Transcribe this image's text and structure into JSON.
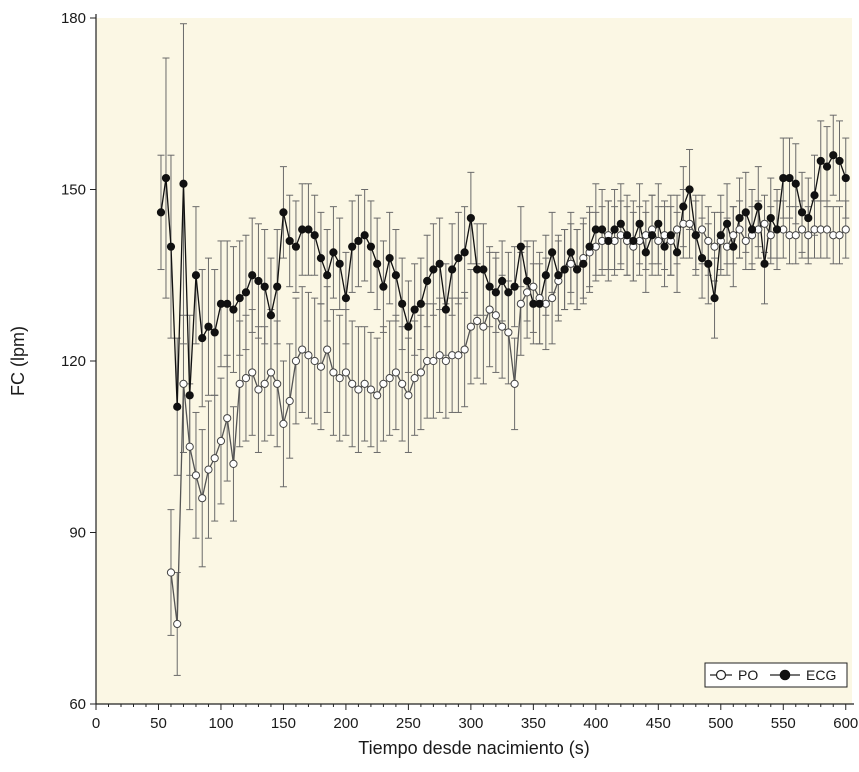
{
  "chart_data": {
    "type": "line",
    "title": "",
    "xlabel": "Tiempo desde nacimiento (s)",
    "ylabel": "FC (lpm)",
    "xlim": [
      0,
      605
    ],
    "ylim": [
      60,
      180
    ],
    "xticks": [
      0,
      50,
      100,
      150,
      200,
      250,
      300,
      350,
      400,
      450,
      500,
      550,
      600
    ],
    "yticks": [
      60,
      90,
      120,
      150,
      180
    ],
    "grid": false,
    "error_bars": true,
    "background": "#fbf7e4",
    "legend": {
      "position": "bottom-right",
      "entries": [
        "PO",
        "ECG"
      ]
    },
    "series": [
      {
        "name": "PO",
        "marker": "open-circle",
        "color": "#555555",
        "x": [
          60,
          65,
          70,
          75,
          80,
          85,
          90,
          95,
          100,
          105,
          110,
          115,
          120,
          125,
          130,
          135,
          140,
          145,
          150,
          155,
          160,
          165,
          170,
          175,
          180,
          185,
          190,
          195,
          200,
          205,
          210,
          215,
          220,
          225,
          230,
          235,
          240,
          245,
          250,
          255,
          260,
          265,
          270,
          275,
          280,
          285,
          290,
          295,
          300,
          305,
          310,
          315,
          320,
          325,
          330,
          335,
          340,
          345,
          350,
          355,
          360,
          365,
          370,
          375,
          380,
          385,
          390,
          395,
          400,
          405,
          410,
          415,
          420,
          425,
          430,
          435,
          440,
          445,
          450,
          455,
          460,
          465,
          470,
          475,
          480,
          485,
          490,
          495,
          500,
          505,
          510,
          515,
          520,
          525,
          530,
          535,
          540,
          545,
          550,
          555,
          560,
          565,
          570,
          575,
          580,
          585,
          590,
          595,
          600
        ],
        "y": [
          83,
          74,
          116,
          105,
          100,
          96,
          101,
          103,
          106,
          110,
          102,
          116,
          117,
          118,
          115,
          116,
          118,
          116,
          109,
          113,
          120,
          122,
          121,
          120,
          119,
          122,
          118,
          117,
          118,
          116,
          115,
          116,
          115,
          114,
          116,
          117,
          118,
          116,
          114,
          117,
          118,
          120,
          120,
          121,
          120,
          121,
          121,
          122,
          126,
          127,
          126,
          129,
          128,
          126,
          125,
          116,
          130,
          132,
          133,
          131,
          130,
          131,
          134,
          136,
          137,
          136,
          138,
          139,
          140,
          141,
          142,
          141,
          142,
          141,
          140,
          141,
          142,
          143,
          141,
          142,
          141,
          143,
          144,
          144,
          142,
          143,
          141,
          140,
          141,
          140,
          142,
          143,
          141,
          142,
          143,
          144,
          142,
          143,
          143,
          142,
          142,
          143,
          142,
          143,
          143,
          143,
          142,
          142,
          143
        ],
        "err": [
          11,
          9,
          12,
          11,
          11,
          12,
          12,
          11,
          11,
          11,
          10,
          11,
          11,
          11,
          11,
          10,
          11,
          11,
          11,
          10,
          11,
          11,
          11,
          11,
          11,
          11,
          11,
          11,
          11,
          11,
          11,
          10,
          10,
          10,
          10,
          10,
          10,
          10,
          10,
          10,
          10,
          10,
          10,
          10,
          10,
          10,
          10,
          10,
          10,
          10,
          10,
          10,
          10,
          9,
          9,
          8,
          9,
          8,
          8,
          8,
          8,
          8,
          7,
          7,
          7,
          7,
          7,
          7,
          6,
          6,
          6,
          6,
          6,
          6,
          6,
          6,
          6,
          6,
          6,
          6,
          6,
          6,
          6,
          6,
          6,
          6,
          6,
          6,
          5,
          5,
          5,
          5,
          5,
          5,
          5,
          5,
          5,
          5,
          5,
          5,
          5,
          5,
          5,
          5,
          5,
          5,
          5,
          5,
          5
        ]
      },
      {
        "name": "ECG",
        "marker": "filled-circle",
        "color": "#111111",
        "x": [
          52,
          56,
          60,
          65,
          70,
          75,
          80,
          85,
          90,
          95,
          100,
          105,
          110,
          115,
          120,
          125,
          130,
          135,
          140,
          145,
          150,
          155,
          160,
          165,
          170,
          175,
          180,
          185,
          190,
          195,
          200,
          205,
          210,
          215,
          220,
          225,
          230,
          235,
          240,
          245,
          250,
          255,
          260,
          265,
          270,
          275,
          280,
          285,
          290,
          295,
          300,
          305,
          310,
          315,
          320,
          325,
          330,
          335,
          340,
          345,
          350,
          355,
          360,
          365,
          370,
          375,
          380,
          385,
          390,
          395,
          400,
          405,
          410,
          415,
          420,
          425,
          430,
          435,
          440,
          445,
          450,
          455,
          460,
          465,
          470,
          475,
          480,
          485,
          490,
          495,
          500,
          505,
          510,
          515,
          520,
          525,
          530,
          535,
          540,
          545,
          550,
          555,
          560,
          565,
          570,
          575,
          580,
          585,
          590,
          595,
          600
        ],
        "y": [
          146,
          152,
          140,
          112,
          151,
          114,
          135,
          124,
          126,
          125,
          130,
          130,
          129,
          131,
          132,
          135,
          134,
          133,
          128,
          133,
          146,
          141,
          140,
          143,
          143,
          142,
          138,
          135,
          139,
          137,
          131,
          140,
          141,
          142,
          140,
          137,
          133,
          138,
          135,
          130,
          126,
          129,
          130,
          134,
          136,
          137,
          129,
          136,
          138,
          139,
          145,
          136,
          136,
          133,
          132,
          134,
          132,
          133,
          140,
          134,
          130,
          130,
          135,
          139,
          135,
          136,
          139,
          136,
          137,
          140,
          143,
          143,
          141,
          143,
          144,
          142,
          141,
          144,
          139,
          142,
          144,
          140,
          142,
          139,
          147,
          150,
          142,
          138,
          137,
          131,
          142,
          144,
          140,
          145,
          146,
          143,
          147,
          137,
          145,
          143,
          152,
          152,
          151,
          146,
          145,
          149,
          155,
          154,
          156,
          155,
          152
        ],
        "err": [
          10,
          21,
          16,
          12,
          28,
          14,
          12,
          12,
          12,
          11,
          11,
          11,
          11,
          10,
          10,
          10,
          10,
          10,
          10,
          10,
          8,
          8,
          8,
          8,
          8,
          7,
          8,
          8,
          8,
          8,
          8,
          8,
          8,
          8,
          8,
          8,
          8,
          8,
          8,
          8,
          8,
          8,
          8,
          8,
          8,
          8,
          8,
          8,
          8,
          8,
          8,
          8,
          8,
          7,
          7,
          7,
          7,
          7,
          7,
          7,
          7,
          7,
          7,
          7,
          7,
          7,
          7,
          7,
          7,
          7,
          8,
          7,
          7,
          7,
          7,
          7,
          7,
          7,
          7,
          7,
          7,
          7,
          7,
          7,
          7,
          7,
          7,
          7,
          7,
          7,
          7,
          7,
          7,
          7,
          7,
          7,
          7,
          7,
          7,
          7,
          7,
          7,
          7,
          7,
          7,
          7,
          7,
          7,
          7,
          7,
          7
        ]
      }
    ]
  }
}
